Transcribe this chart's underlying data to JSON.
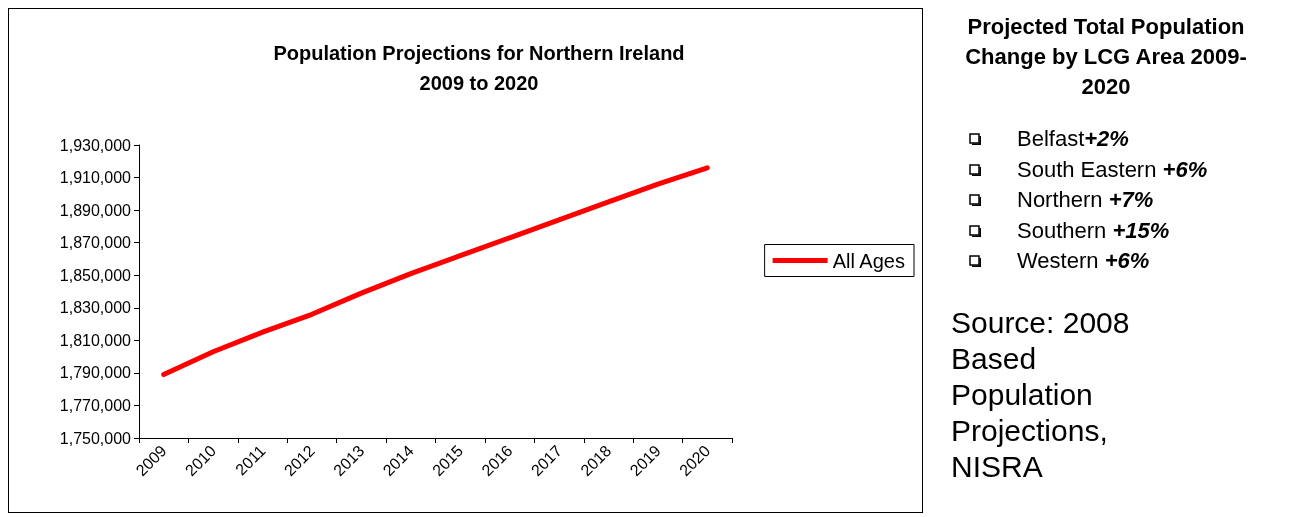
{
  "chart_data": [
    {
      "type": "line",
      "title": "Population Projections for Northern Ireland\n2009 to 2020",
      "categories": [
        "2009",
        "2010",
        "2011",
        "2012",
        "2013",
        "2014",
        "2015",
        "2016",
        "2017",
        "2018",
        "2019",
        "2020"
      ],
      "series": [
        {
          "name": "All Ages",
          "color": "#ff0000",
          "values": [
            1789000,
            1803000,
            1815000,
            1826000,
            1839000,
            1851000,
            1862000,
            1873000,
            1884000,
            1895000,
            1906000,
            1916000
          ]
        }
      ],
      "ylim": [
        1750000,
        1930000
      ],
      "yticks": [
        {
          "value": 1750000,
          "label": "1,750,000"
        },
        {
          "value": 1770000,
          "label": "1,770,000"
        },
        {
          "value": 1790000,
          "label": "1,790,000"
        },
        {
          "value": 1810000,
          "label": "1,810,000"
        },
        {
          "value": 1830000,
          "label": "1,830,000"
        },
        {
          "value": 1850000,
          "label": "1,850,000"
        },
        {
          "value": 1870000,
          "label": "1,870,000"
        },
        {
          "value": 1890000,
          "label": "1,890,000"
        },
        {
          "value": 1910000,
          "label": "1,910,000"
        },
        {
          "value": 1930000,
          "label": "1,930,000"
        }
      ],
      "grid": false,
      "legend": "right",
      "line_style": "solid",
      "annotations": [
        "Source: 2008 Based Population Projections, NISRA"
      ]
    },
    {
      "type": "other",
      "title": "Projected Total Population Change by LCG Area 2009-2020",
      "annotations": [
        "Belfast+2%",
        "South Eastern +6%",
        "Northern +7%",
        "Southern +15%",
        "Western +6%"
      ]
    }
  ]
}
